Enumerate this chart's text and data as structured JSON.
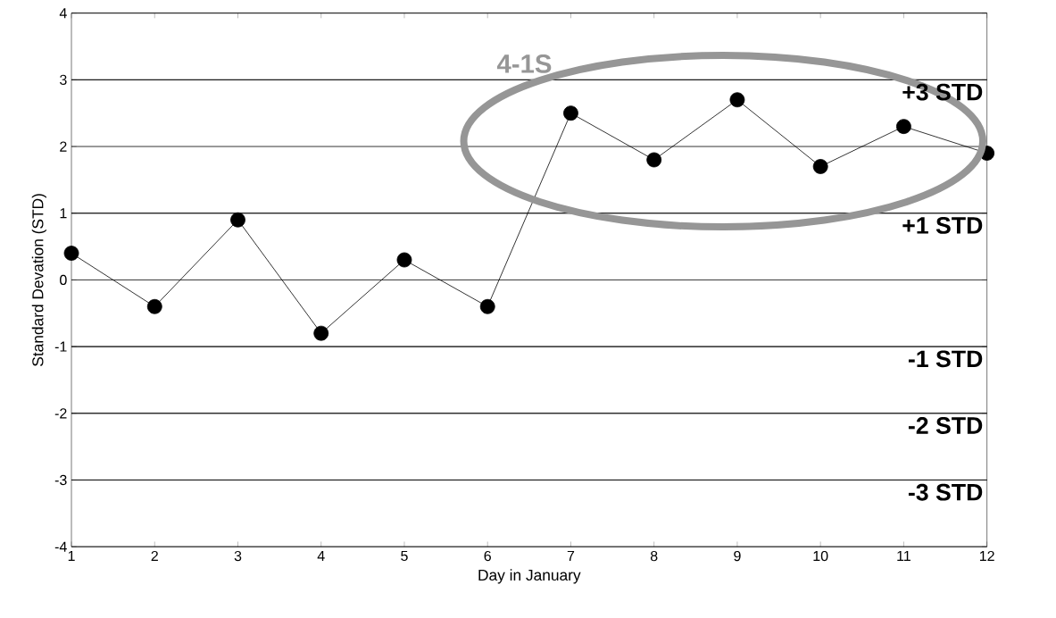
{
  "chart_data": {
    "type": "line",
    "xlabel": "Day in January",
    "ylabel": "Standard Devation (STD)",
    "x": [
      1,
      2,
      3,
      4,
      5,
      6,
      7,
      8,
      9,
      10,
      11,
      12
    ],
    "series": [
      {
        "color": "#000000",
        "values": [
          0.4,
          -0.4,
          0.9,
          -0.8,
          0.3,
          -0.4,
          2.5,
          1.8,
          2.7,
          1.7,
          2.3,
          1.9
        ]
      }
    ],
    "xlim": [
      1,
      12
    ],
    "xticks": [
      1,
      2,
      3,
      4,
      5,
      6,
      7,
      8,
      9,
      10,
      11,
      12
    ],
    "ylim": [
      -4,
      4
    ],
    "yticks": [
      -4,
      -3,
      -2,
      -1,
      0,
      1,
      2,
      3,
      4
    ],
    "grid": "y",
    "marker": "circle",
    "line_style": "solid",
    "annotations": [
      "4-1S"
    ],
    "ref_lines": [
      {
        "axis": "y",
        "value": 3,
        "label": "+3 STD",
        "color": "#000000"
      },
      {
        "axis": "y",
        "value": 1,
        "label": "+1 STD",
        "color": "#000000"
      },
      {
        "axis": "y",
        "value": -1,
        "label": "-1 STD",
        "color": "#000000"
      },
      {
        "axis": "y",
        "value": -2,
        "label": "-2 STD",
        "color": "#000000"
      },
      {
        "axis": "y",
        "value": -3,
        "label": "-3 STD",
        "color": "#000000"
      }
    ]
  }
}
